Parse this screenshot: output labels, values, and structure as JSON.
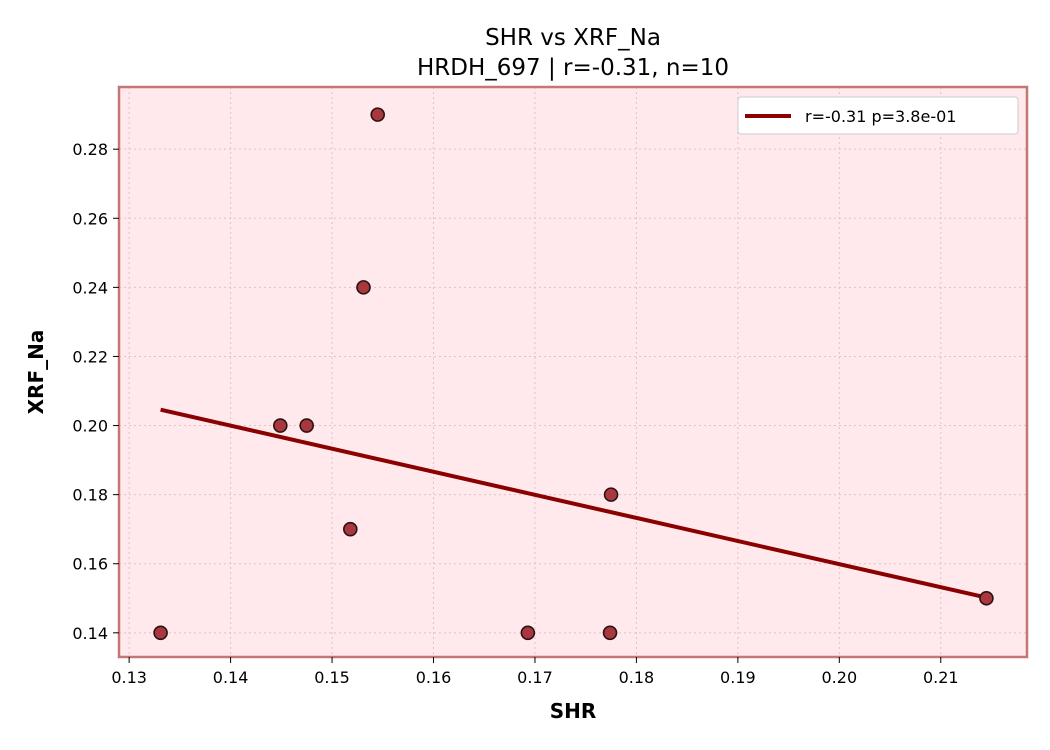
{
  "chart_data": {
    "type": "scatter",
    "title": "SHR vs XRF_Na",
    "subtitle": "HRDH_697 | r=-0.31, n=10",
    "xlabel": "SHR",
    "ylabel": "XRF_Na",
    "xlim": [
      0.129,
      0.2185
    ],
    "ylim": [
      0.133,
      0.298
    ],
    "xticks": [
      0.13,
      0.14,
      0.15,
      0.16,
      0.17,
      0.18,
      0.19,
      0.2,
      0.21
    ],
    "xtick_labels": [
      "0.13",
      "0.14",
      "0.15",
      "0.16",
      "0.17",
      "0.18",
      "0.19",
      "0.20",
      "0.21"
    ],
    "yticks": [
      0.14,
      0.16,
      0.18,
      0.2,
      0.22,
      0.24,
      0.26,
      0.28
    ],
    "ytick_labels": [
      "0.14",
      "0.16",
      "0.18",
      "0.20",
      "0.22",
      "0.24",
      "0.26",
      "0.28"
    ],
    "grid": true,
    "legend_position": "top-right",
    "points": [
      {
        "x": 0.1331,
        "y": 0.14
      },
      {
        "x": 0.1449,
        "y": 0.2
      },
      {
        "x": 0.1475,
        "y": 0.2
      },
      {
        "x": 0.1518,
        "y": 0.17
      },
      {
        "x": 0.1531,
        "y": 0.24
      },
      {
        "x": 0.1545,
        "y": 0.29
      },
      {
        "x": 0.1693,
        "y": 0.14
      },
      {
        "x": 0.1774,
        "y": 0.14
      },
      {
        "x": 0.1775,
        "y": 0.18
      },
      {
        "x": 0.2145,
        "y": 0.15
      }
    ],
    "fit_line": {
      "label": "r=-0.31  p=3.8e-01",
      "x": [
        0.1331,
        0.2145
      ],
      "y": [
        0.2046,
        0.1502
      ]
    },
    "colors": {
      "plot_background": "#ffe9ec",
      "axes_border": "#c47777",
      "grid": "#dfc2c6",
      "point_fill": "#a8383d",
      "point_edge": "#2a1214",
      "fit_line": "#8b0000"
    }
  }
}
